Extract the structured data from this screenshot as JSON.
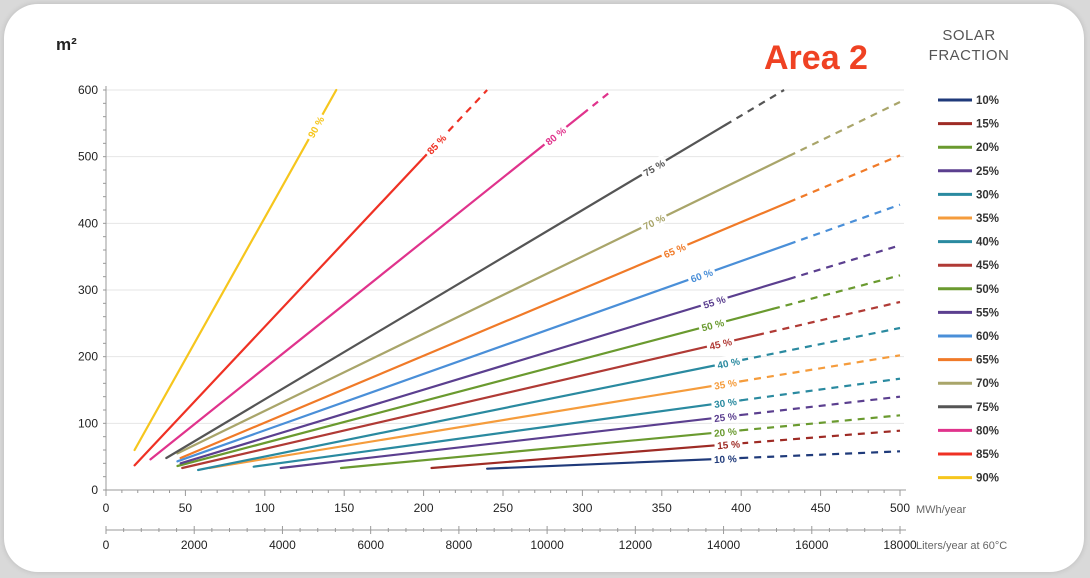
{
  "chart_data": {
    "type": "line",
    "title": "Area 2",
    "y_unit": "m²",
    "legend_title": [
      "SOLAR",
      "FRACTION"
    ],
    "ylim": [
      0,
      600
    ],
    "y_ticks": [
      0,
      100,
      200,
      300,
      400,
      500,
      600
    ],
    "xlim": [
      0,
      500
    ],
    "x_ticks": [
      0,
      50,
      100,
      150,
      200,
      250,
      300,
      350,
      400,
      450,
      500
    ],
    "x_unit": "MWh/year",
    "x2_ticks": [
      0,
      2000,
      4000,
      6000,
      8000,
      10000,
      12000,
      14000,
      16000,
      18000
    ],
    "x2_unit": "Liters/year at 60°C",
    "grid": "horizontal",
    "legend_position": "right",
    "series": [
      {
        "name": "10%",
        "label": "10 %",
        "color": "#1f3a7a",
        "points": [
          [
            240,
            32
          ],
          [
            500,
            58
          ]
        ],
        "solid_to": 400,
        "label_x": 390
      },
      {
        "name": "15%",
        "label": "15 %",
        "color": "#9e2b25",
        "points": [
          [
            205,
            33
          ],
          [
            500,
            89
          ]
        ],
        "solid_to": 400,
        "label_x": 392
      },
      {
        "name": "20%",
        "label": "20 %",
        "color": "#6a9a2f",
        "points": [
          [
            148,
            33
          ],
          [
            500,
            112
          ]
        ],
        "solid_to": 400,
        "label_x": 390
      },
      {
        "name": "25%",
        "label": "25 %",
        "color": "#5b3f8f",
        "points": [
          [
            110,
            33
          ],
          [
            500,
            140
          ]
        ],
        "solid_to": 400,
        "label_x": 390
      },
      {
        "name": "30%",
        "label": "30 %",
        "color": "#2a8aa0",
        "points": [
          [
            93,
            35
          ],
          [
            500,
            167
          ]
        ],
        "solid_to": 400,
        "label_x": 390
      },
      {
        "name": "35%",
        "label": "35 %",
        "color": "#f59c3c",
        "points": [
          [
            65,
            33
          ],
          [
            500,
            202
          ]
        ],
        "solid_to": 400,
        "label_x": 390
      },
      {
        "name": "40%",
        "label": "40 %",
        "color": "#2a8aa0",
        "points": [
          [
            58,
            30
          ],
          [
            500,
            243
          ]
        ],
        "solid_to": 400,
        "label_x": 392
      },
      {
        "name": "45%",
        "label": "45 %",
        "color": "#b03a35",
        "points": [
          [
            48,
            33
          ],
          [
            500,
            282
          ]
        ],
        "solid_to": 410,
        "label_x": 387
      },
      {
        "name": "50%",
        "label": "50 %",
        "color": "#6a9a2f",
        "points": [
          [
            45,
            36
          ],
          [
            500,
            322
          ]
        ],
        "solid_to": 420,
        "label_x": 382
      },
      {
        "name": "55%",
        "label": "55 %",
        "color": "#5b3f8f",
        "points": [
          [
            47,
            40
          ],
          [
            500,
            367
          ]
        ],
        "solid_to": 430,
        "label_x": 383
      },
      {
        "name": "60%",
        "label": "60 %",
        "color": "#4a8fd8",
        "points": [
          [
            45,
            43
          ],
          [
            500,
            428
          ]
        ],
        "solid_to": 430,
        "label_x": 375
      },
      {
        "name": "65%",
        "label": "65 %",
        "color": "#f07a28",
        "points": [
          [
            47,
            48
          ],
          [
            500,
            502
          ]
        ],
        "solid_to": 430,
        "label_x": 358
      },
      {
        "name": "70%",
        "label": "70 %",
        "color": "#a9a56a",
        "points": [
          [
            45,
            55
          ],
          [
            500,
            582
          ]
        ],
        "solid_to": 430,
        "label_x": 345
      },
      {
        "name": "75%",
        "label": "75 %",
        "color": "#555555",
        "points": [
          [
            38,
            48
          ],
          [
            427,
            600
          ]
        ],
        "solid_to": 390,
        "label_x": 345
      },
      {
        "name": "80%",
        "label": "80 %",
        "color": "#e0338c",
        "points": [
          [
            28,
            46
          ],
          [
            319,
            600
          ]
        ],
        "solid_to": 300,
        "label_x": 283
      },
      {
        "name": "85%",
        "label": "85 %",
        "color": "#ef3124",
        "points": [
          [
            18,
            37
          ],
          [
            240,
            600
          ]
        ],
        "solid_to": 210,
        "label_x": 208
      },
      {
        "name": "90%",
        "label": "90 %",
        "color": "#f6c61d",
        "points": [
          [
            18,
            60
          ],
          [
            145,
            600
          ]
        ],
        "solid_to": 145,
        "label_x": 132
      }
    ]
  }
}
